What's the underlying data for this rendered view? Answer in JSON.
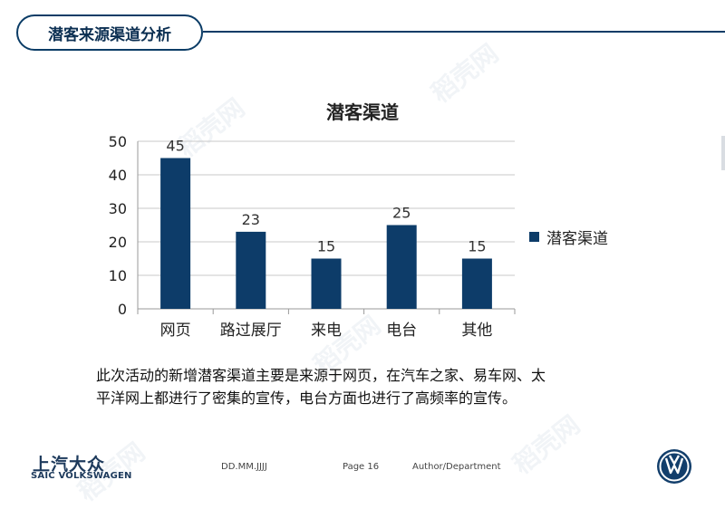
{
  "slide": {
    "title": "潜客来源渠道分析",
    "caption_line1": "此次活动的新增潜客渠道主要是来源于网页，在汽车之家、易车网、太",
    "caption_line2": "平洋网上都进行了密集的宣传，电台方面也进行了高频率的宣传。",
    "watermark": "稻壳网"
  },
  "footer": {
    "logo_cn": "上汽大众",
    "logo_en": "SAIC VOLKSWAGEN",
    "date": "DD.MM.JJJJ",
    "page": "Page 16",
    "author": "Author/Department"
  },
  "colors": {
    "bar": "#0d3c69",
    "accent": "#0b3c66"
  },
  "chart_data": {
    "type": "bar",
    "title": "潜客渠道",
    "categories": [
      "网页",
      "路过展厅",
      "来电",
      "电台",
      "其他"
    ],
    "series": [
      {
        "name": "潜客渠道",
        "values": [
          45,
          23,
          15,
          25,
          15
        ]
      }
    ],
    "ylim": [
      0,
      50
    ],
    "yticks": [
      0,
      10,
      20,
      30,
      40,
      50
    ],
    "xlabel": "",
    "ylabel": "",
    "grid": true,
    "legend": "right",
    "data_labels": true
  }
}
